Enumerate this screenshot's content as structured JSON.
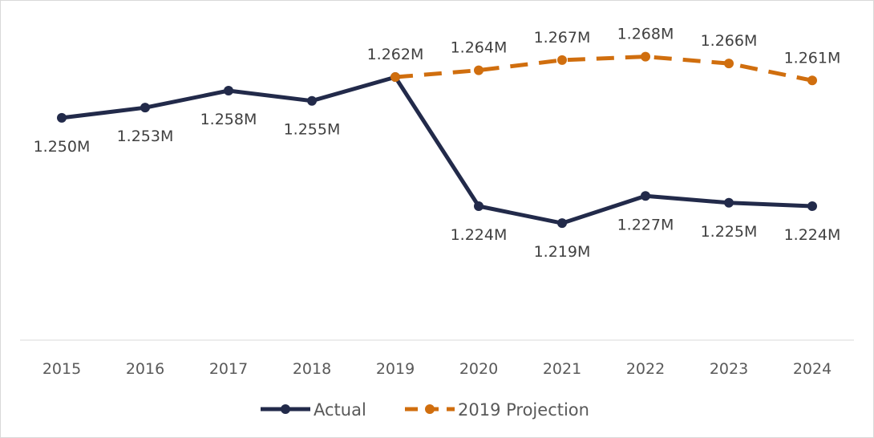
{
  "chart_data": {
    "type": "line",
    "categories": [
      "2015",
      "2016",
      "2017",
      "2018",
      "2019",
      "2020",
      "2021",
      "2022",
      "2023",
      "2024"
    ],
    "series": [
      {
        "name": "Actual",
        "color": "#222a4a",
        "style": "solid",
        "values": [
          1.25,
          1.253,
          1.258,
          1.255,
          1.262,
          1.224,
          1.219,
          1.227,
          1.225,
          1.224
        ],
        "labels": [
          "1.250M",
          "1.253M",
          "1.258M",
          "1.255M",
          "",
          "1.224M",
          "1.219M",
          "1.227M",
          "1.225M",
          "1.224M"
        ]
      },
      {
        "name": "2019 Projection",
        "color": "#d06e0e",
        "style": "dashed",
        "values": [
          null,
          null,
          null,
          null,
          1.262,
          1.264,
          1.267,
          1.268,
          1.266,
          1.261
        ],
        "labels": [
          "",
          "",
          "",
          "",
          "1.262M",
          "1.264M",
          "1.267M",
          "1.268M",
          "1.266M",
          "1.261M"
        ]
      }
    ],
    "unit": "M",
    "ylim": [
      1.19,
      1.275
    ],
    "y_axis_visible": false,
    "grid": false,
    "legend": "bottom-center"
  }
}
